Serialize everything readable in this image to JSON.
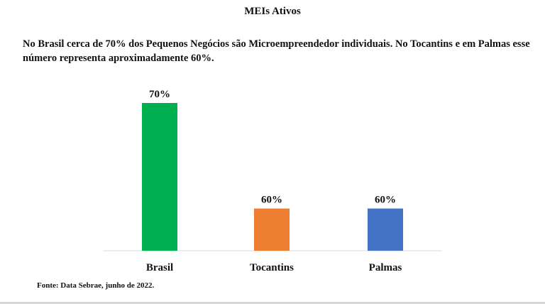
{
  "title": "MEIs Ativos",
  "description": "No Brasil cerca de 70% dos Pequenos Negócios são Microempreendedor individuais. No Tocantins e em Palmas esse número representa aproximadamente 60%.",
  "source": "Fonte: Data Sebrae, junho de 2022.",
  "chart_data": {
    "type": "bar",
    "title": "MEIs Ativos",
    "categories": [
      "Brasil",
      "Tocantins",
      "Palmas"
    ],
    "values": [
      70,
      60,
      60
    ],
    "data_labels": [
      "70%",
      "60%",
      "60%"
    ],
    "colors": [
      "#00b050",
      "#ed7d31",
      "#4472c4"
    ],
    "baseline": 56,
    "max": 70,
    "xlabel": "",
    "ylabel": "",
    "grid": false,
    "legend": "none"
  }
}
